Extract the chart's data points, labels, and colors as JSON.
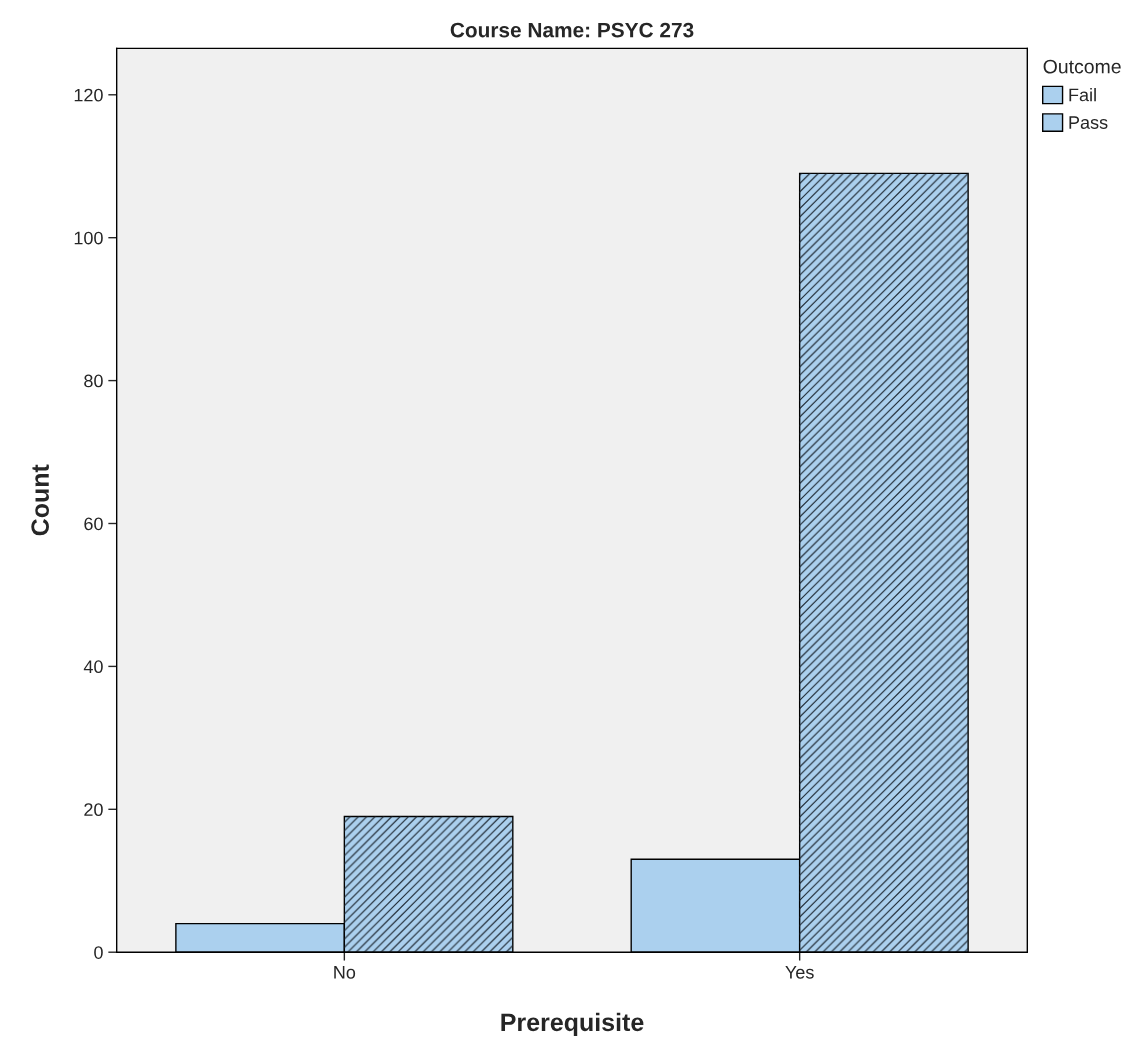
{
  "chart_data": {
    "type": "bar",
    "title": "Course Name: PSYC 273",
    "xlabel": "Prerequisite",
    "ylabel": "Count",
    "legend_title": "Outcome",
    "categories": [
      "No",
      "Yes"
    ],
    "series": [
      {
        "name": "Fail",
        "color": "#abd0ee",
        "values": [
          4,
          13
        ]
      },
      {
        "name": "Pass",
        "color": "#abd0ee",
        "values": [
          19,
          109
        ]
      }
    ],
    "ylim": [
      0,
      126.5
    ],
    "yticks": [
      0,
      20,
      40,
      60,
      80,
      100,
      120
    ],
    "grid": false,
    "legend": "top right"
  }
}
